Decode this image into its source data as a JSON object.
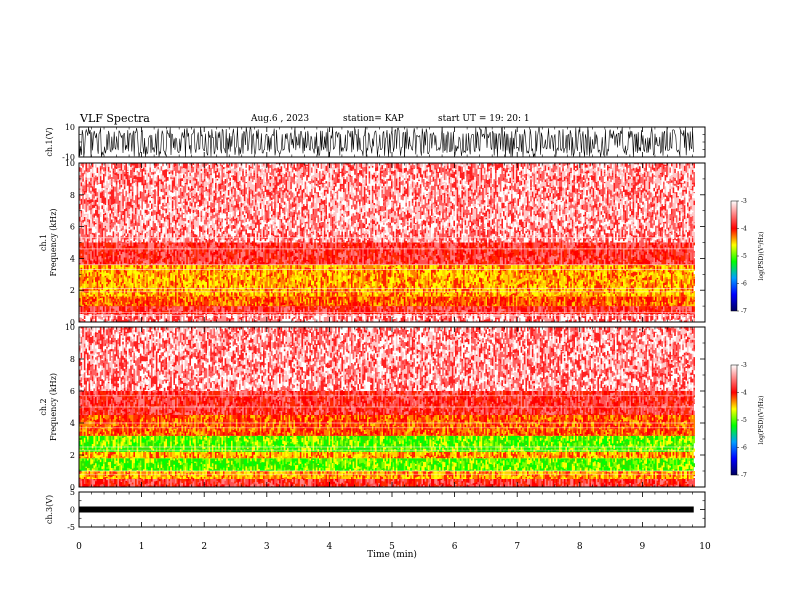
{
  "header": {
    "title": "VLF Spectra",
    "date": "Aug.6 , 2023",
    "station": "station= KAP",
    "start": "start UT = 19: 20: 1"
  },
  "chart_data": [
    {
      "type": "line",
      "name": "ch1-waveform",
      "ylabel": "ch.1(V)",
      "ylim": [
        -10,
        10
      ],
      "yticks": [
        "10",
        "-10"
      ],
      "xlim": [
        0,
        10
      ],
      "data_xrange": [
        0,
        9.82
      ],
      "note": "dense noisy waveform filling most of the panel"
    },
    {
      "type": "heatmap",
      "name": "ch1-spectrogram",
      "ylabel": "ch.1\nFrequency (kHz)",
      "ylim": [
        0,
        10
      ],
      "yticks": [
        "0",
        "2",
        "4",
        "6",
        "8",
        "10"
      ],
      "xlim": [
        0,
        10
      ],
      "data_xrange": [
        0,
        9.82
      ],
      "bands": [
        {
          "from": 0,
          "to": 0.5,
          "level": "white-red"
        },
        {
          "from": 0.5,
          "to": 1.0,
          "level": "red"
        },
        {
          "from": 1.0,
          "to": 1.6,
          "level": "red-yellow"
        },
        {
          "from": 1.6,
          "to": 3.6,
          "level": "yellow"
        },
        {
          "from": 3.6,
          "to": 5.0,
          "level": "red"
        },
        {
          "from": 5.0,
          "to": 10,
          "level": "light-red"
        }
      ],
      "colorbar": {
        "label": "log(PSD)(V²/Hz)",
        "min": -7,
        "max": -3,
        "ticks": [
          "-3",
          "-4",
          "-5",
          "-6",
          "-7"
        ],
        "colors": [
          "#000080",
          "#0000ff",
          "#00a0ff",
          "#00ff00",
          "#ffff00",
          "#ff0000",
          "#ffffff"
        ]
      }
    },
    {
      "type": "heatmap",
      "name": "ch2-spectrogram",
      "ylabel": "ch.2\nFrequency (kHz)",
      "ylim": [
        0,
        10
      ],
      "yticks": [
        "0",
        "2",
        "4",
        "6",
        "8",
        "10"
      ],
      "xlim": [
        0,
        10
      ],
      "data_xrange": [
        0,
        9.82
      ],
      "bands": [
        {
          "from": 0,
          "to": 0.5,
          "level": "red"
        },
        {
          "from": 0.5,
          "to": 1.0,
          "level": "yellow"
        },
        {
          "from": 1.0,
          "to": 1.8,
          "level": "green"
        },
        {
          "from": 1.8,
          "to": 2.2,
          "level": "yellow"
        },
        {
          "from": 2.2,
          "to": 3.2,
          "level": "green"
        },
        {
          "from": 3.2,
          "to": 4.5,
          "level": "red-yellow"
        },
        {
          "from": 4.5,
          "to": 6.0,
          "level": "red"
        },
        {
          "from": 6.0,
          "to": 10,
          "level": "light-red"
        }
      ],
      "colorbar": {
        "label": "log(PSD)(V²/Hz)",
        "min": -7,
        "max": -3,
        "ticks": [
          "-3",
          "-4",
          "-5",
          "-6",
          "-7"
        ],
        "colors": [
          "#000080",
          "#0000ff",
          "#00a0ff",
          "#00ff00",
          "#ffff00",
          "#ff0000",
          "#ffffff"
        ]
      }
    },
    {
      "type": "line",
      "name": "ch3-waveform",
      "ylabel": "ch.3(V)",
      "ylim": [
        -5,
        5
      ],
      "yticks": [
        "5",
        "0",
        "-5"
      ],
      "xlim": [
        0,
        10
      ],
      "data_xrange": [
        0,
        9.82
      ],
      "level": 0,
      "note": "thick black flat band near 0 V"
    }
  ],
  "xaxis": {
    "label": "Time (min)",
    "ticks": [
      "0",
      "1",
      "2",
      "3",
      "4",
      "5",
      "6",
      "7",
      "8",
      "9",
      "10"
    ]
  }
}
